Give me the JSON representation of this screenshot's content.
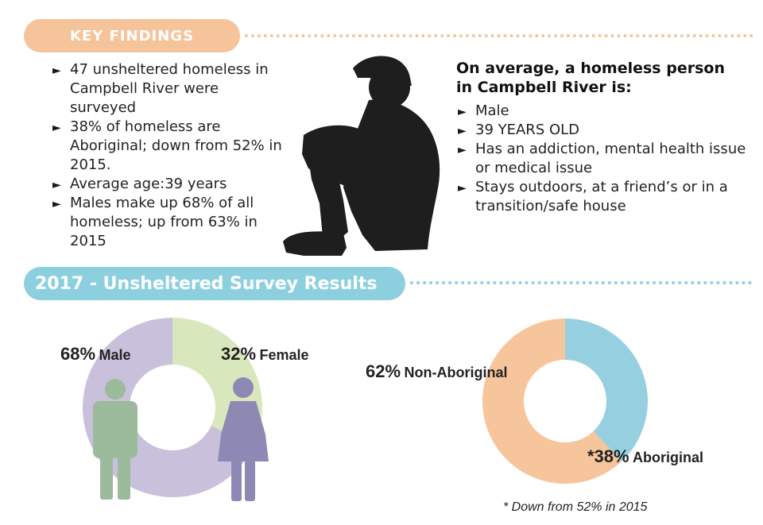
{
  "key_findings": {
    "title": "KEY FINDINGS",
    "items": [
      "47 unsheltered homeless in Campbell River were surveyed",
      "38% of homeless are Aboriginal; down from 52% in 2015.",
      "Average age:39 years",
      "Males make up 68% of all homeless; up from 63% in 2015"
    ]
  },
  "average_profile": {
    "title": "On average, a homeless person in Campbell River is:",
    "items": [
      "Male",
      "39 YEARS OLD",
      "Has an addiction, mental health issue or medical issue",
      "Stays outdoors, at a friend’s or in a transition/safe house"
    ]
  },
  "bullet_glyph": "►",
  "survey": {
    "title": "2017 - Unsheltered Survey Results"
  },
  "chart_data": [
    {
      "type": "pie",
      "donut": true,
      "categories": [
        "Male",
        "Female"
      ],
      "values": [
        68,
        32
      ],
      "labels": [
        {
          "pct": "68%",
          "text": "Male"
        },
        {
          "pct": "32%",
          "text": "Female"
        }
      ],
      "colors": [
        "#c9c0dc",
        "#d9e7bd"
      ]
    },
    {
      "type": "pie",
      "donut": true,
      "categories": [
        "Non-Aboriginal",
        "Aboriginal"
      ],
      "values": [
        62,
        38
      ],
      "labels": [
        {
          "pct": "62%",
          "text": "Non-Aboriginal"
        },
        {
          "pct": "*38%",
          "text": "Aboriginal"
        }
      ],
      "colors": [
        "#f7c59c",
        "#95cfe0"
      ]
    }
  ],
  "footnote": "* Down from 52% in 2015",
  "colors": {
    "orange": "#f6c49b",
    "blue": "#8cd0e0",
    "male_figure": "#9cba9c",
    "female_figure": "#8e89b4",
    "silhouette": "#1e1e1e"
  }
}
